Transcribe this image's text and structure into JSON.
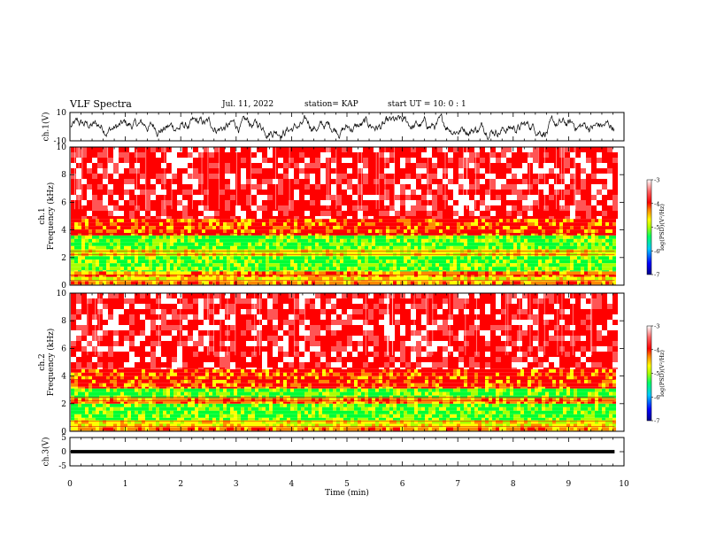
{
  "header": {
    "title": "VLF Spectra",
    "date": "Jul. 11, 2022",
    "station": "station= KAP",
    "start": "start  UT =   10: 0  : 1"
  },
  "chart_data": [
    {
      "type": "line",
      "panel": "ch1-waveform",
      "ylabel": "ch.1(V)",
      "yticks": [
        "10",
        "-10"
      ],
      "ylim": [
        -10,
        10
      ],
      "xlim": [
        0,
        10
      ],
      "x_units": "min",
      "data_extent_min": [
        0,
        9.83
      ],
      "series": [
        {
          "envelope_min": -9,
          "envelope_max": 9,
          "typical_range": [
            -6,
            6
          ]
        }
      ]
    },
    {
      "type": "heatmap",
      "panel": "ch1-spectrogram",
      "ylabel": "ch.1\nFrequency (kHz)",
      "yticks": [
        "0",
        "2",
        "4",
        "6",
        "8",
        "10"
      ],
      "ylim": [
        0,
        10
      ],
      "xlim": [
        0,
        10
      ],
      "data_extent_min": [
        0,
        9.83
      ],
      "colorbar": {
        "label": "log(PSD)(V²/Hz)",
        "ticks": [
          "-3",
          "-4",
          "-5",
          "-6",
          "-7"
        ],
        "range": [
          -7,
          -3
        ]
      },
      "bands_khz": [
        {
          "from": 0,
          "to": 0.3,
          "level": -4.4
        },
        {
          "from": 0.3,
          "to": 0.6,
          "level": -4.8
        },
        {
          "from": 0.6,
          "to": 1.0,
          "level": -4.3
        },
        {
          "from": 1.0,
          "to": 2.1,
          "level": -5.0
        },
        {
          "from": 2.1,
          "to": 2.6,
          "level": -4.6
        },
        {
          "from": 2.6,
          "to": 3.6,
          "level": -5.1
        },
        {
          "from": 3.6,
          "to": 4.8,
          "level": -4.0
        },
        {
          "from": 4.8,
          "to": 10.0,
          "level": -3.3
        }
      ]
    },
    {
      "type": "heatmap",
      "panel": "ch2-spectrogram",
      "ylabel": "ch.2\nFrequency (kHz)",
      "yticks": [
        "0",
        "2",
        "4",
        "6",
        "8",
        "10"
      ],
      "ylim": [
        0,
        10
      ],
      "xlim": [
        0,
        10
      ],
      "data_extent_min": [
        0,
        9.83
      ],
      "colorbar": {
        "label": "log(PSD)(V²/Hz)",
        "ticks": [
          "-3",
          "-4",
          "-5",
          "-6",
          "-7"
        ],
        "range": [
          -7,
          -3
        ]
      },
      "bands_khz": [
        {
          "from": 0,
          "to": 0.3,
          "level": -4.2
        },
        {
          "from": 0.3,
          "to": 0.8,
          "level": -4.6
        },
        {
          "from": 0.8,
          "to": 2.0,
          "level": -5.0
        },
        {
          "from": 2.0,
          "to": 2.4,
          "level": -4.5
        },
        {
          "from": 2.4,
          "to": 3.1,
          "level": -5.1
        },
        {
          "from": 3.1,
          "to": 4.5,
          "level": -3.9
        },
        {
          "from": 4.5,
          "to": 10.0,
          "level": -3.2
        }
      ]
    },
    {
      "type": "line",
      "panel": "ch3-waveform",
      "ylabel": "ch.3(V)",
      "yticks": [
        "5",
        "0",
        "-5"
      ],
      "ylim": [
        -5,
        5
      ],
      "xlim": [
        0,
        10
      ],
      "data_extent_min": [
        0,
        9.83
      ],
      "series": [
        {
          "envelope_min": -0.6,
          "envelope_max": 0.6
        }
      ]
    }
  ],
  "xaxis": {
    "label": "Time (min)",
    "ticks": [
      "0",
      "1",
      "2",
      "3",
      "4",
      "5",
      "6",
      "7",
      "8",
      "9",
      "10"
    ]
  },
  "colors": {
    "colormap": [
      "#00008b",
      "#0000ff",
      "#00c8ff",
      "#00ff66",
      "#aaff00",
      "#ffff00",
      "#ff8800",
      "#ff0000",
      "#ffffff"
    ],
    "trace": "#000000"
  }
}
